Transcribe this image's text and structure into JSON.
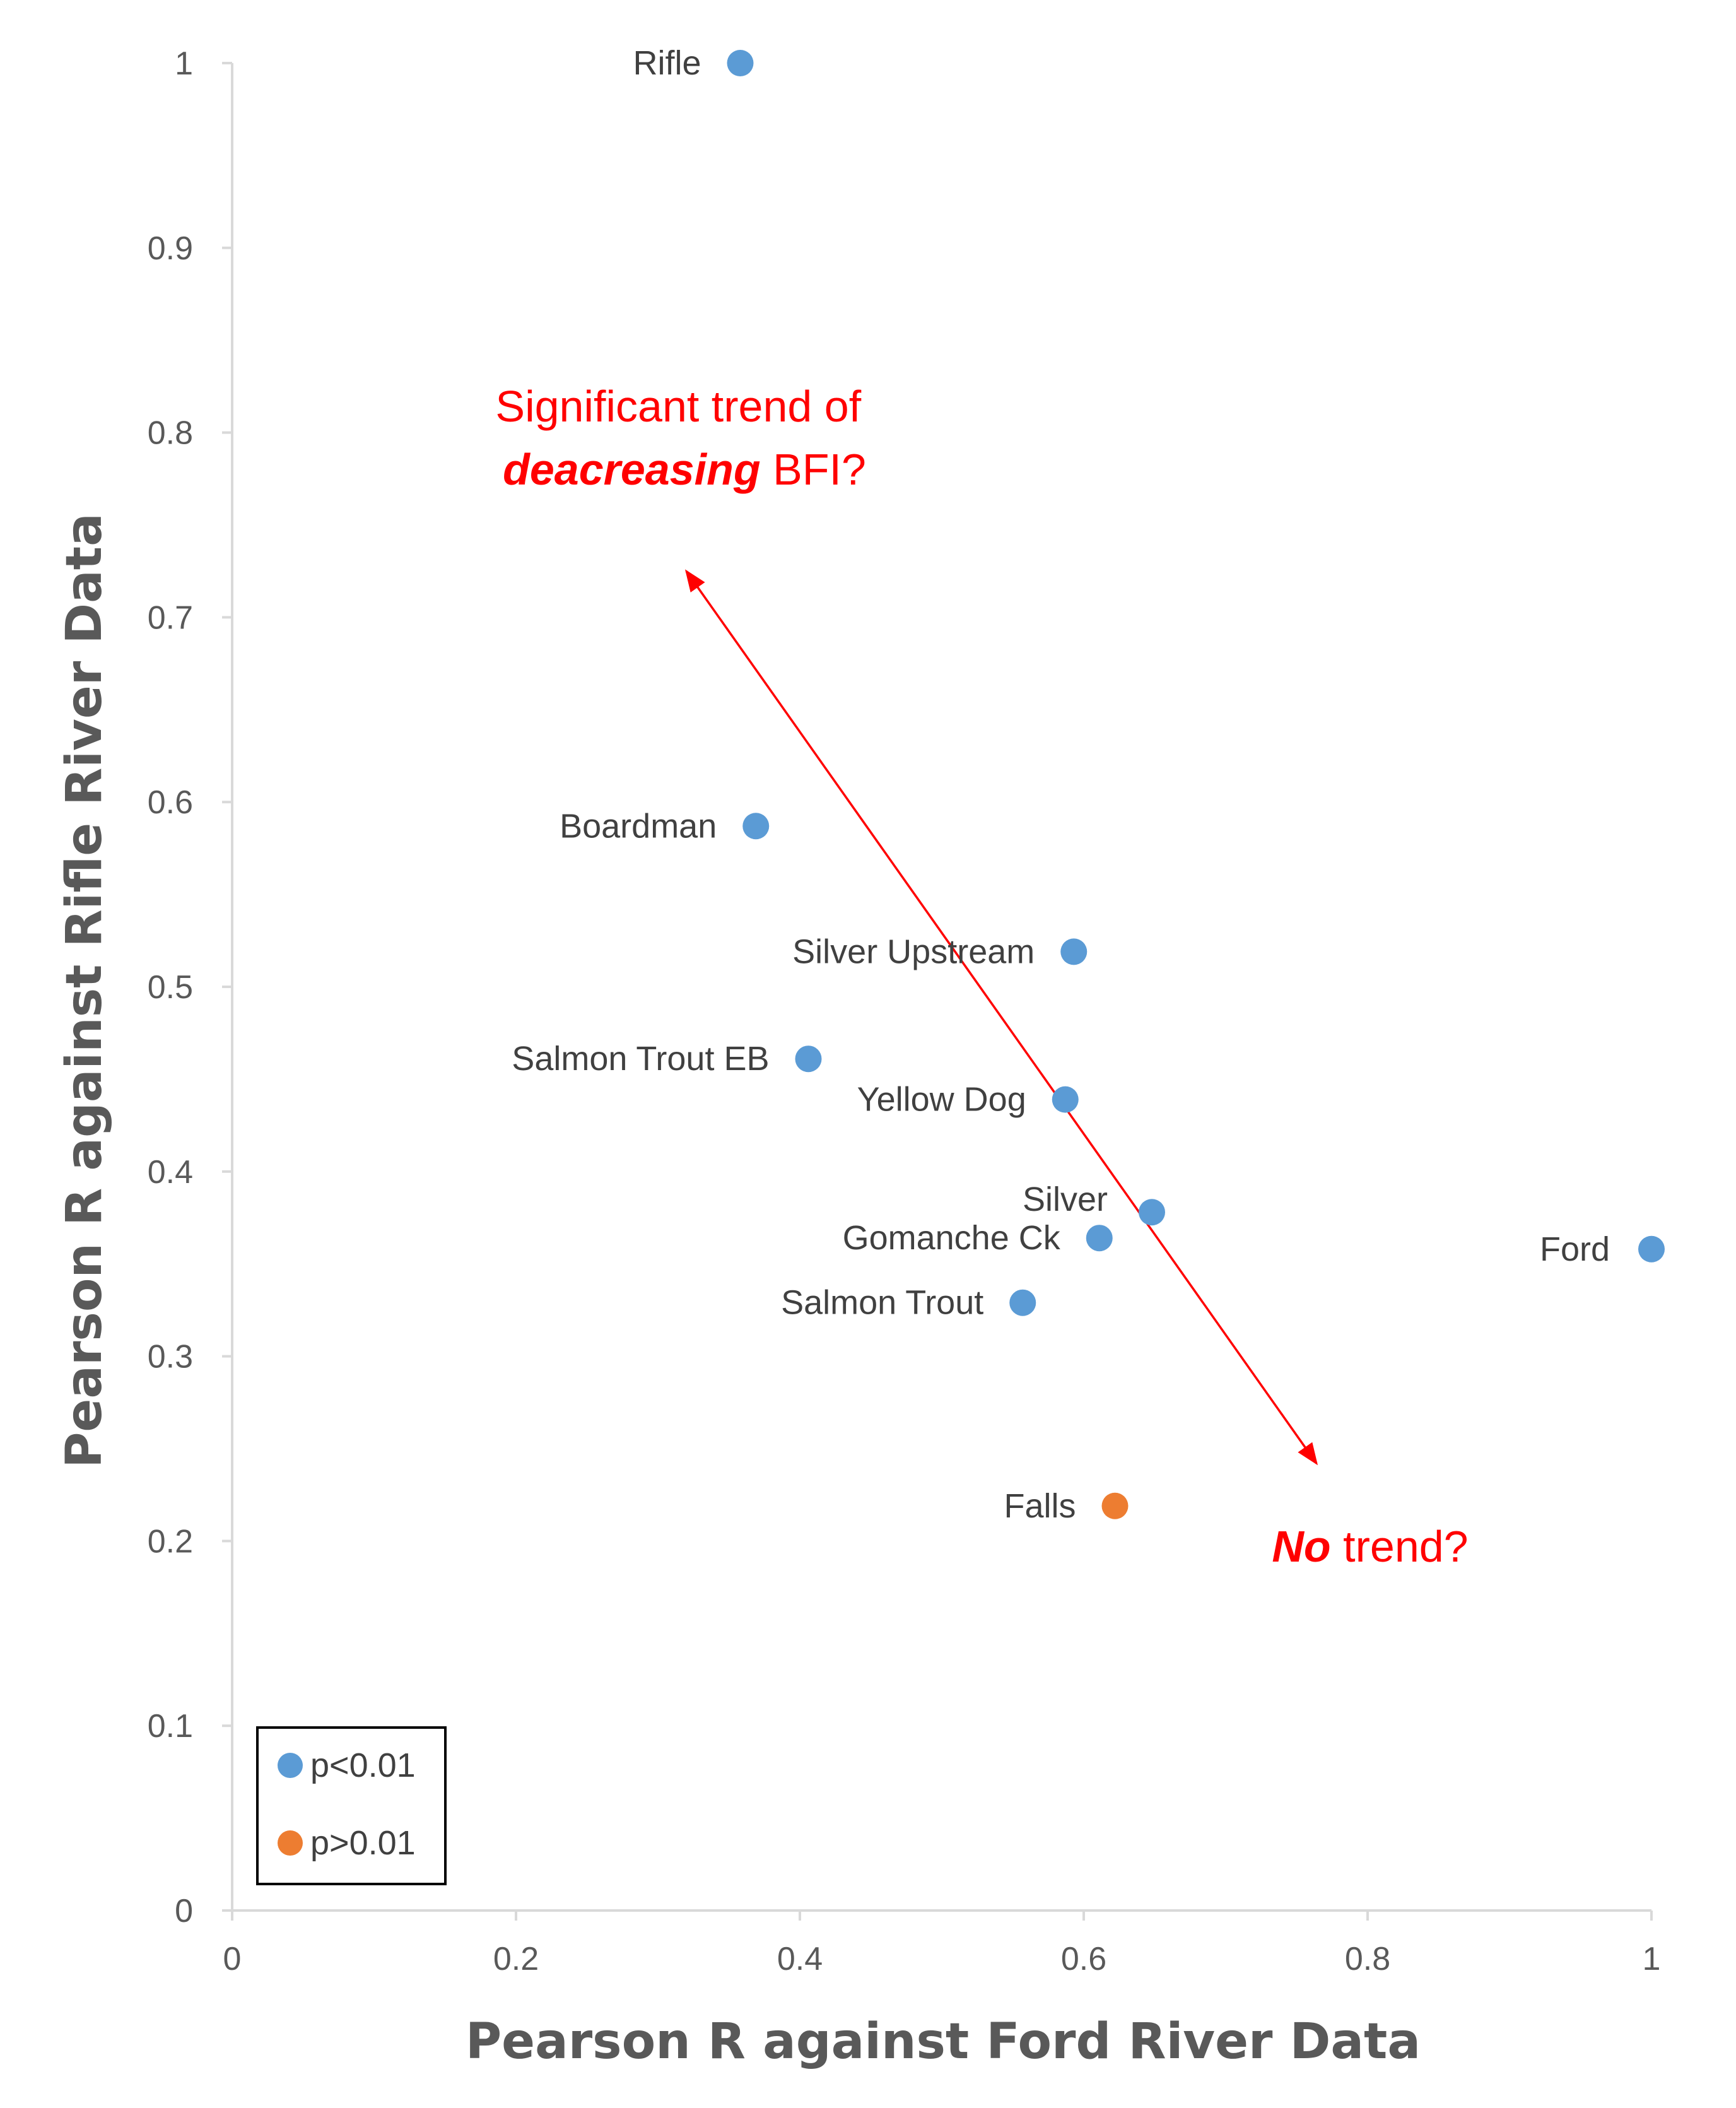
{
  "chart_data": {
    "type": "scatter",
    "xlabel": "Pearson R against Ford River Data",
    "ylabel": "Pearson R against Rifle River Data",
    "xlim": [
      0,
      1
    ],
    "ylim": [
      0,
      1
    ],
    "x_ticks": [
      0,
      0.2,
      0.4,
      0.6,
      0.8,
      1
    ],
    "x_tick_labels": [
      "0",
      "0.2",
      "0.4",
      "0.6",
      "0.8",
      "1"
    ],
    "y_ticks": [
      0,
      0.1,
      0.2,
      0.3,
      0.4,
      0.5,
      0.6,
      0.7,
      0.8,
      0.9,
      1
    ],
    "y_tick_labels": [
      "0",
      "0.1",
      "0.2",
      "0.3",
      "0.4",
      "0.5",
      "0.6",
      "0.7",
      "0.8",
      "0.9",
      "1"
    ],
    "grid": false,
    "series": [
      {
        "name": "p<0.01",
        "color": "#5b9bd5",
        "points": [
          {
            "label": "Rifle",
            "x": 0.358,
            "y": 1.0
          },
          {
            "label": "Boardman",
            "x": 0.369,
            "y": 0.587
          },
          {
            "label": "Silver Upstream",
            "x": 0.593,
            "y": 0.519
          },
          {
            "label": "Salmon Trout EB",
            "x": 0.406,
            "y": 0.461
          },
          {
            "label": "Yellow Dog",
            "x": 0.587,
            "y": 0.439
          },
          {
            "label": "Silver",
            "x": 0.648,
            "y": 0.378
          },
          {
            "label": "Gomanche Ck",
            "x": 0.611,
            "y": 0.364
          },
          {
            "label": "Salmon Trout",
            "x": 0.557,
            "y": 0.329
          },
          {
            "label": "Ford",
            "x": 1.0,
            "y": 0.358
          }
        ]
      },
      {
        "name": "p>0.01",
        "color": "#ed7d31",
        "points": [
          {
            "label": "Falls",
            "x": 0.622,
            "y": 0.219
          }
        ]
      }
    ],
    "legend": {
      "placement": "bottom-left",
      "entries": [
        {
          "label": "p<0.01",
          "color": "#5b9bd5"
        },
        {
          "label": "p>0.01",
          "color": "#ed7d31"
        }
      ]
    },
    "annotations": {
      "arrow": {
        "start": [
          0.32,
          0.725
        ],
        "end": [
          0.764,
          0.242
        ],
        "color": "#ff0000",
        "double_headed": true
      },
      "top": {
        "line1": "Significant trend of",
        "line2_emph": "deacreasing",
        "line2_rest": " BFI?"
      },
      "bottom": {
        "emph": "No",
        "rest": " trend?"
      }
    }
  }
}
